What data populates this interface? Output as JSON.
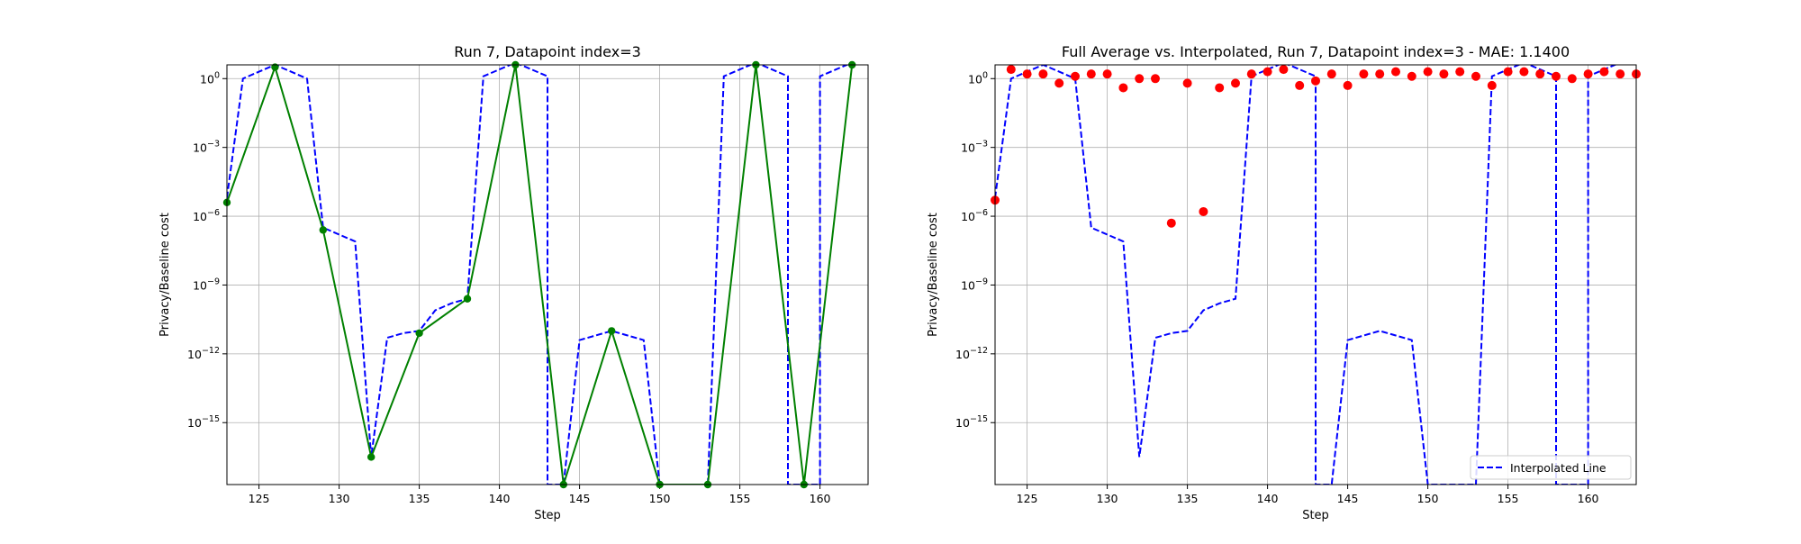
{
  "chart_data": [
    {
      "type": "line",
      "title": "Run 7, Datapoint index=3",
      "xlabel": "Step",
      "ylabel": "Privacy/Baseline cost",
      "yscale": "log",
      "xlim": [
        123,
        163
      ],
      "ylim_log10": [
        -17.7,
        0.6
      ],
      "xticks": [
        125,
        130,
        135,
        140,
        145,
        150,
        155,
        160
      ],
      "yticks": [
        {
          "exp": 0,
          "label": "10^0"
        },
        {
          "exp": -3,
          "label": "10^-3"
        },
        {
          "exp": -6,
          "label": "10^-6"
        },
        {
          "exp": -9,
          "label": "10^-9"
        },
        {
          "exp": -12,
          "label": "10^-12"
        },
        {
          "exp": -15,
          "label": "10^-15"
        }
      ],
      "grid": true,
      "series": [
        {
          "style": "dashed",
          "color": "#0000ff",
          "log10_x": [
            123,
            124,
            125,
            126,
            127,
            128,
            129,
            130,
            131,
            132,
            133,
            134,
            135,
            136,
            137,
            138,
            139,
            140,
            141,
            142,
            143,
            143,
            144,
            145,
            145,
            146,
            147,
            148,
            149,
            150,
            151,
            152,
            153,
            154,
            155,
            156,
            157,
            158,
            158,
            159,
            160,
            160,
            161,
            162
          ],
          "log10_y": [
            -5.2,
            0,
            0.3,
            0.6,
            0.3,
            0,
            -6.5,
            -6.8,
            -7.1,
            -16.5,
            -11.3,
            -11.1,
            -11,
            -10.1,
            -9.8,
            -9.6,
            0.1,
            0.4,
            0.7,
            0.4,
            0.1,
            -17.7,
            -17.7,
            -11.4,
            -11.4,
            -11.2,
            -11,
            -11.2,
            -11.4,
            -17.7,
            -17.7,
            -17.7,
            -17.7,
            0.1,
            0.4,
            0.7,
            0.4,
            0.1,
            -17.7,
            -17.7,
            -17.7,
            0.1,
            0.4,
            0.7
          ]
        },
        {
          "style": "solid-marker",
          "color": "#008000",
          "log10_x": [
            123,
            126,
            129,
            132,
            135,
            138,
            141,
            144,
            147,
            150,
            153,
            156,
            159,
            162
          ],
          "log10_y": [
            -5.4,
            0.5,
            -6.6,
            -16.5,
            -11.1,
            -9.6,
            0.6,
            -17.7,
            -11,
            -17.7,
            -17.7,
            0.6,
            -17.7,
            0.6
          ]
        }
      ]
    },
    {
      "type": "scatter",
      "title": "Full Average vs. Interpolated, Run 7, Datapoint index=3 - MAE: 1.1400",
      "xlabel": "Step",
      "ylabel": "Privacy/Baseline cost",
      "yscale": "log",
      "xlim": [
        123,
        163
      ],
      "ylim_log10": [
        -17.7,
        0.6
      ],
      "xticks": [
        125,
        130,
        135,
        140,
        145,
        150,
        155,
        160
      ],
      "yticks": [
        {
          "exp": 0,
          "label": "10^0"
        },
        {
          "exp": -3,
          "label": "10^-3"
        },
        {
          "exp": -6,
          "label": "10^-6"
        },
        {
          "exp": -9,
          "label": "10^-9"
        },
        {
          "exp": -12,
          "label": "10^-12"
        },
        {
          "exp": -15,
          "label": "10^-15"
        }
      ],
      "grid": true,
      "legend": {
        "position": "lower-right",
        "entries": [
          "Interpolated Line"
        ]
      },
      "series": [
        {
          "name": "Interpolated Line",
          "style": "dashed",
          "color": "#0000ff",
          "log10_x": [
            123,
            124,
            125,
            126,
            127,
            128,
            129,
            130,
            131,
            132,
            133,
            134,
            135,
            136,
            137,
            138,
            139,
            140,
            141,
            142,
            143,
            143,
            144,
            145,
            145,
            146,
            147,
            148,
            149,
            150,
            151,
            152,
            153,
            154,
            155,
            156,
            157,
            158,
            158,
            159,
            160,
            160,
            161,
            162
          ],
          "log10_y": [
            -5.2,
            0,
            0.3,
            0.6,
            0.3,
            0,
            -6.5,
            -6.8,
            -7.1,
            -16.5,
            -11.3,
            -11.1,
            -11,
            -10.1,
            -9.8,
            -9.6,
            0.1,
            0.4,
            0.7,
            0.4,
            0.1,
            -17.7,
            -17.7,
            -11.4,
            -11.4,
            -11.2,
            -11,
            -11.2,
            -11.4,
            -17.7,
            -17.7,
            -17.7,
            -17.7,
            0.1,
            0.4,
            0.7,
            0.4,
            0.1,
            -17.7,
            -17.7,
            -17.7,
            0.1,
            0.4,
            0.7
          ]
        },
        {
          "style": "markers",
          "color": "#ff0000",
          "log10_x": [
            123,
            124,
            125,
            126,
            127,
            128,
            129,
            130,
            131,
            132,
            133,
            134,
            135,
            136,
            137,
            138,
            139,
            140,
            141,
            142,
            143,
            144,
            145,
            146,
            147,
            148,
            149,
            150,
            151,
            152,
            153,
            154,
            155,
            156,
            157,
            158,
            159,
            160,
            161,
            162,
            163
          ],
          "log10_y": [
            -5.3,
            0.4,
            0.2,
            0.2,
            -0.2,
            0.1,
            0.2,
            0.2,
            -0.4,
            0,
            0,
            -6.3,
            -0.2,
            -5.8,
            -0.4,
            -0.2,
            0.2,
            0.3,
            0.4,
            -0.3,
            -0.1,
            0.2,
            -0.3,
            0.2,
            0.2,
            0.3,
            0.1,
            0.3,
            0.2,
            0.3,
            0.1,
            -0.3,
            0.3,
            0.3,
            0.2,
            0.1,
            0,
            0.2,
            0.3,
            0.2,
            0.2
          ]
        }
      ]
    }
  ]
}
